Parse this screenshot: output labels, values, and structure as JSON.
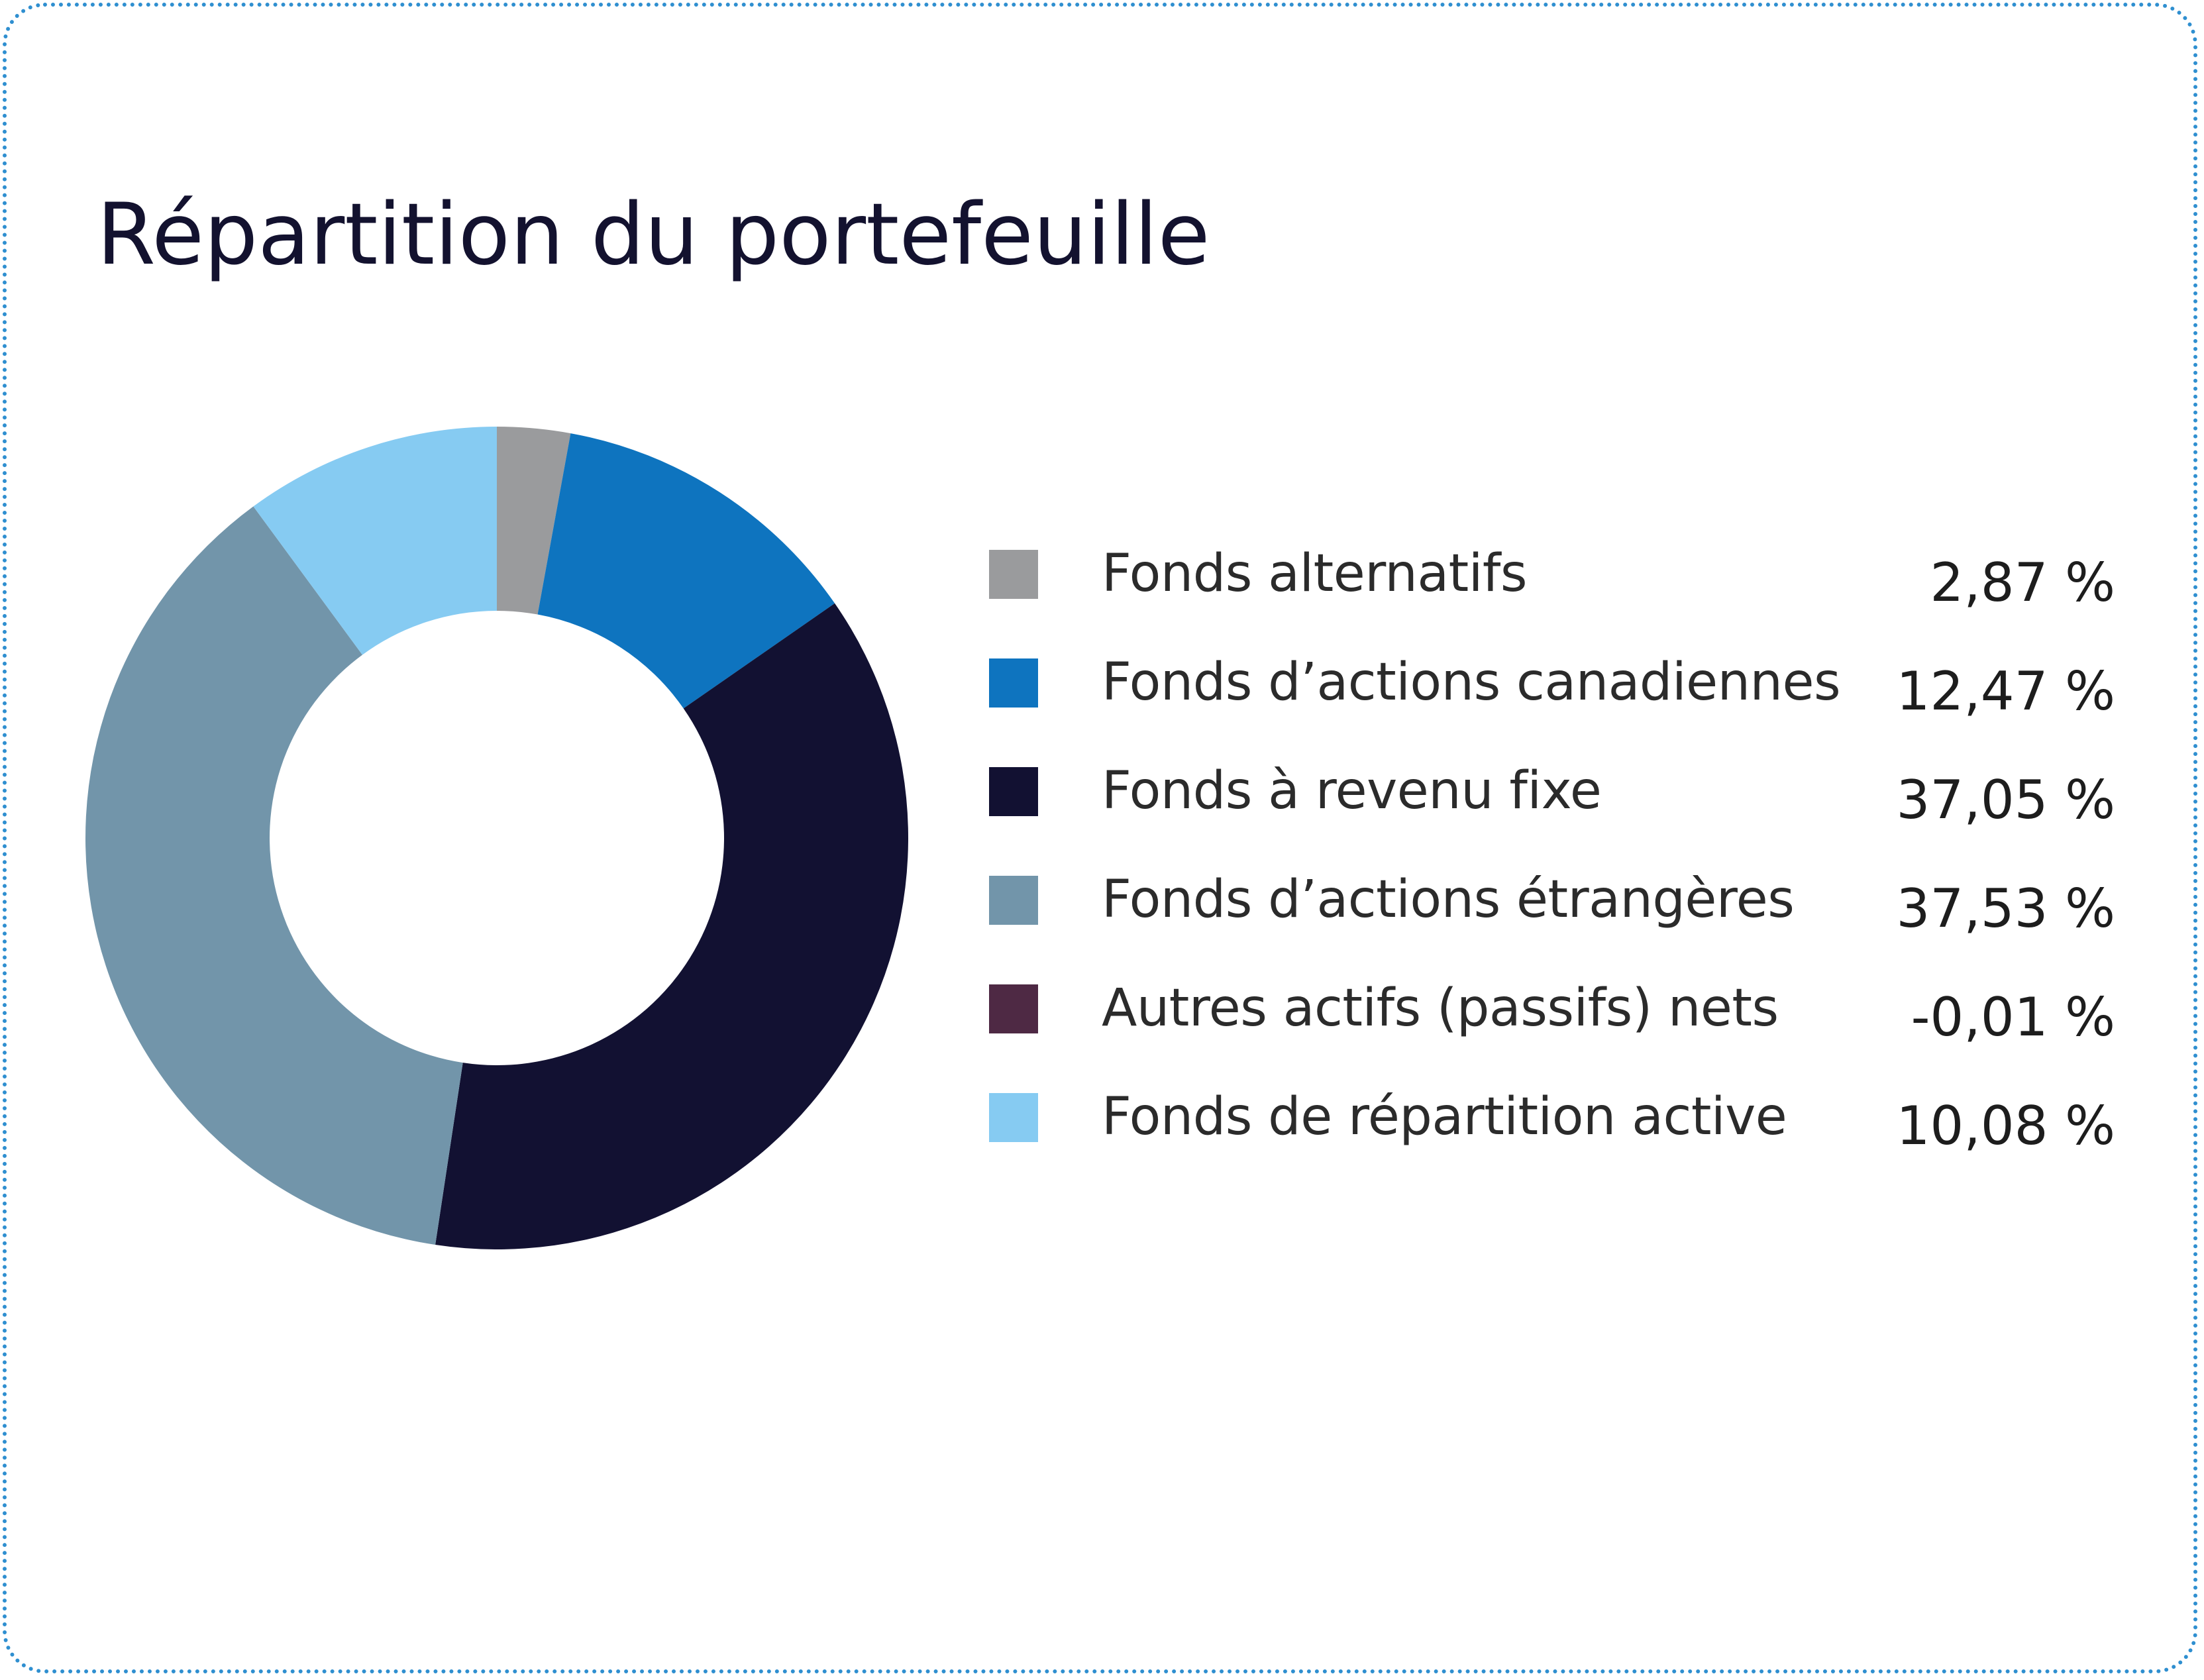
{
  "chart_data": {
    "type": "pie",
    "donut": true,
    "title": "Répartition du portefeuille",
    "legend_position": "right",
    "series": [
      {
        "name": "Fonds alternatifs",
        "value": 2.87,
        "value_label": "2,87 %",
        "color": "#9a9b9d"
      },
      {
        "name": "Fonds d’actions canadiennes",
        "value": 12.47,
        "value_label": "12,47 %",
        "color": "#0e74bf"
      },
      {
        "name": "Fonds à revenu fixe",
        "value": 37.05,
        "value_label": "37,05 %",
        "color": "#121132"
      },
      {
        "name": "Fonds d’actions étrangères",
        "value": 37.53,
        "value_label": "37,53 %",
        "color": "#7295aa"
      },
      {
        "name": "Autres actifs (passifs) nets",
        "value": -0.01,
        "value_label": "-0,01 %",
        "color": "#4e2944"
      },
      {
        "name": "Fonds de répartition active",
        "value": 10.08,
        "value_label": "10,08 %",
        "color": "#86cbf2"
      }
    ]
  }
}
